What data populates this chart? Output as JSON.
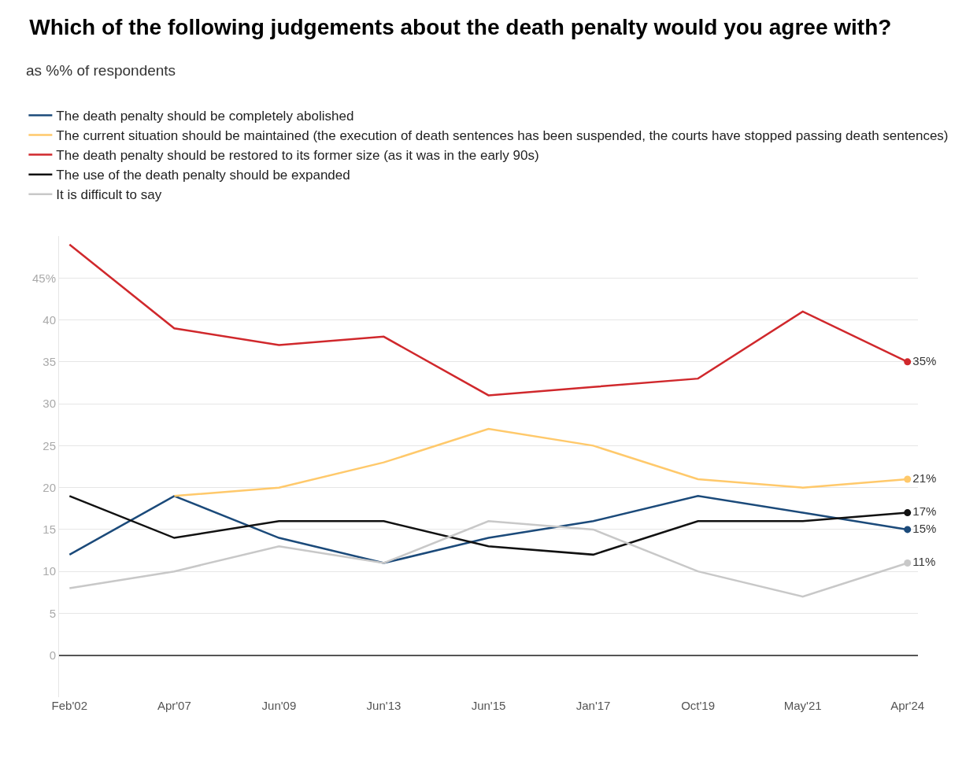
{
  "chart_data": {
    "type": "line",
    "title": "Which of the following judgements about the death penalty would you agree with?",
    "subtitle": "as %% of respondents",
    "categories": [
      "Feb'02",
      "Apr'07",
      "Jun'09",
      "Jun'13",
      "Jun'15",
      "Jan'17",
      "Oct'19",
      "May'21",
      "Apr'24"
    ],
    "series": [
      {
        "name": "The death penalty should be completely abolished",
        "color": "#1b4a7a",
        "values": [
          12,
          19,
          14,
          11,
          14,
          16,
          19,
          17,
          15
        ],
        "value_labels": [
          null,
          null,
          null,
          null,
          null,
          null,
          null,
          null,
          "15%"
        ]
      },
      {
        "name": "The current situation should be maintained (the execution of death sentences has been suspended, the courts have stopped passing death sentences)",
        "color": "#ffc96b",
        "values": [
          null,
          19,
          20,
          23,
          27,
          25,
          21,
          20,
          21
        ],
        "value_labels": [
          null,
          null,
          null,
          null,
          null,
          null,
          null,
          null,
          "21%"
        ]
      },
      {
        "name": "The death penalty should be restored to its former size (as it was in the early 90s)",
        "color": "#d0282c",
        "values": [
          49,
          39,
          37,
          38,
          31,
          32,
          33,
          41,
          35
        ],
        "value_labels": [
          null,
          null,
          null,
          null,
          null,
          null,
          null,
          null,
          "35%"
        ]
      },
      {
        "name": "The use of the death penalty should be expanded",
        "color": "#111111",
        "values": [
          19,
          14,
          16,
          16,
          13,
          12,
          16,
          16,
          17
        ],
        "value_labels": [
          null,
          null,
          null,
          null,
          null,
          null,
          null,
          null,
          "17%"
        ]
      },
      {
        "name": "It is difficult to say",
        "color": "#c8c8c8",
        "values": [
          8,
          10,
          13,
          11,
          16,
          15,
          10,
          7,
          11
        ],
        "value_labels": [
          null,
          null,
          null,
          null,
          null,
          null,
          null,
          null,
          "11%"
        ]
      }
    ],
    "ylim": [
      -5,
      50
    ],
    "yticks": [
      0,
      5,
      10,
      15,
      20,
      25,
      30,
      35,
      40,
      {
        "value": 45,
        "label": "45%"
      }
    ],
    "grid": "y",
    "legend": "top left",
    "marker": "none",
    "line_style": "solid"
  }
}
